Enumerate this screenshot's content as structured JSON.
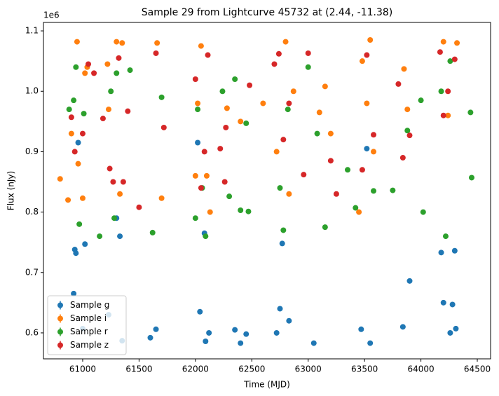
{
  "chart_data": {
    "type": "scatter",
    "title": "Sample 29 from Lightcurve 45732 at (2.44, -11.38)",
    "x_label": "Time (MJD)",
    "y_label": "Flux (nJy)",
    "y_offset_label": "1e6",
    "xlim": [
      60652,
      64618
    ],
    "ylim": [
      0.557,
      1.114
    ],
    "xticks": [
      61000,
      61500,
      62000,
      62500,
      63000,
      63500,
      64000,
      64500
    ],
    "yticks": [
      0.6,
      0.7,
      0.8,
      0.9,
      {
        "value": 1,
        "label": "1.0"
      },
      1.1
    ],
    "legend": "lower left",
    "grid": false,
    "series": [
      {
        "name": "Sample g",
        "color": "#1f77b4",
        "x": [
          60920,
          60930,
          60940,
          60960,
          61020,
          61000,
          61300,
          61330,
          61350,
          61230,
          61600,
          61650,
          62020,
          62040,
          62080,
          62090,
          62120,
          62350,
          62400,
          62450,
          62720,
          62750,
          62770,
          62830,
          63050,
          63470,
          63520,
          63550,
          63900,
          63840,
          64180,
          64200,
          64260,
          64280,
          64300,
          64310
        ],
        "values": [
          0.665,
          0.738,
          0.732,
          0.915,
          0.747,
          0.607,
          0.79,
          0.76,
          0.587,
          0.63,
          0.592,
          0.606,
          0.915,
          0.635,
          0.765,
          0.586,
          0.6,
          0.605,
          0.583,
          0.598,
          0.6,
          0.64,
          0.748,
          0.62,
          0.583,
          0.606,
          0.905,
          0.583,
          0.686,
          0.61,
          0.733,
          0.65,
          0.6,
          0.647,
          0.736,
          0.607
        ]
      },
      {
        "name": "Sample i",
        "color": "#ff7f0e",
        "x": [
          60800,
          60870,
          60900,
          60950,
          60960,
          61000,
          61020,
          61040,
          61220,
          61230,
          61300,
          61330,
          61350,
          61660,
          61700,
          62000,
          62020,
          62050,
          62100,
          62130,
          62280,
          62400,
          62600,
          62720,
          62800,
          62830,
          62870,
          63100,
          63150,
          63200,
          63450,
          63480,
          63520,
          63550,
          63580,
          63850,
          63880,
          64200,
          64240,
          64320
        ],
        "values": [
          0.855,
          0.82,
          0.93,
          1.082,
          0.88,
          0.823,
          1.03,
          1.04,
          1.045,
          0.97,
          1.082,
          0.83,
          1.08,
          1.08,
          0.823,
          0.86,
          0.98,
          1.075,
          0.86,
          0.8,
          0.972,
          0.95,
          0.98,
          0.9,
          1.082,
          0.83,
          1.0,
          0.965,
          1.008,
          0.93,
          0.8,
          1.05,
          0.98,
          1.085,
          0.9,
          1.037,
          0.97,
          1.082,
          0.96,
          1.08
        ]
      },
      {
        "name": "Sample r",
        "color": "#2ca02c",
        "x": [
          60880,
          60920,
          60940,
          60970,
          61010,
          61150,
          61250,
          61280,
          61300,
          61420,
          61620,
          61700,
          62000,
          62020,
          62060,
          62090,
          62240,
          62300,
          62350,
          62400,
          62450,
          62470,
          62750,
          62780,
          62820,
          63000,
          63080,
          63150,
          63350,
          63420,
          63580,
          63750,
          63880,
          64000,
          64020,
          64180,
          64220,
          64260,
          64440,
          64450
        ],
        "values": [
          0.97,
          0.985,
          1.04,
          0.78,
          0.963,
          0.76,
          1.0,
          0.79,
          1.03,
          1.035,
          0.766,
          0.99,
          0.79,
          0.97,
          0.84,
          0.76,
          1.0,
          0.826,
          1.02,
          0.803,
          0.947,
          0.801,
          0.84,
          0.77,
          0.97,
          1.04,
          0.93,
          0.775,
          0.87,
          0.807,
          0.835,
          0.836,
          0.935,
          0.985,
          0.8,
          1.0,
          0.76,
          1.05,
          0.965,
          0.857
        ]
      },
      {
        "name": "Sample z",
        "color": "#d62728",
        "x": [
          60900,
          60930,
          61000,
          61050,
          61100,
          61180,
          61240,
          61270,
          61320,
          61360,
          61400,
          61500,
          61650,
          61720,
          62000,
          62050,
          62080,
          62110,
          62220,
          62260,
          62270,
          62480,
          62700,
          62740,
          62780,
          62830,
          62960,
          63000,
          63200,
          63250,
          63480,
          63520,
          63580,
          63800,
          63840,
          63900,
          64170,
          64200,
          64240,
          64300
        ],
        "values": [
          0.957,
          0.9,
          0.93,
          1.045,
          1.03,
          0.955,
          0.872,
          0.85,
          1.055,
          0.85,
          0.967,
          0.808,
          1.063,
          0.94,
          1.02,
          0.84,
          0.9,
          1.06,
          0.905,
          0.85,
          0.94,
          1.01,
          1.045,
          1.062,
          0.92,
          0.98,
          0.862,
          1.063,
          0.885,
          0.83,
          0.87,
          1.06,
          0.928,
          1.012,
          0.89,
          0.927,
          1.065,
          0.96,
          1.0,
          1.053
        ]
      }
    ]
  }
}
